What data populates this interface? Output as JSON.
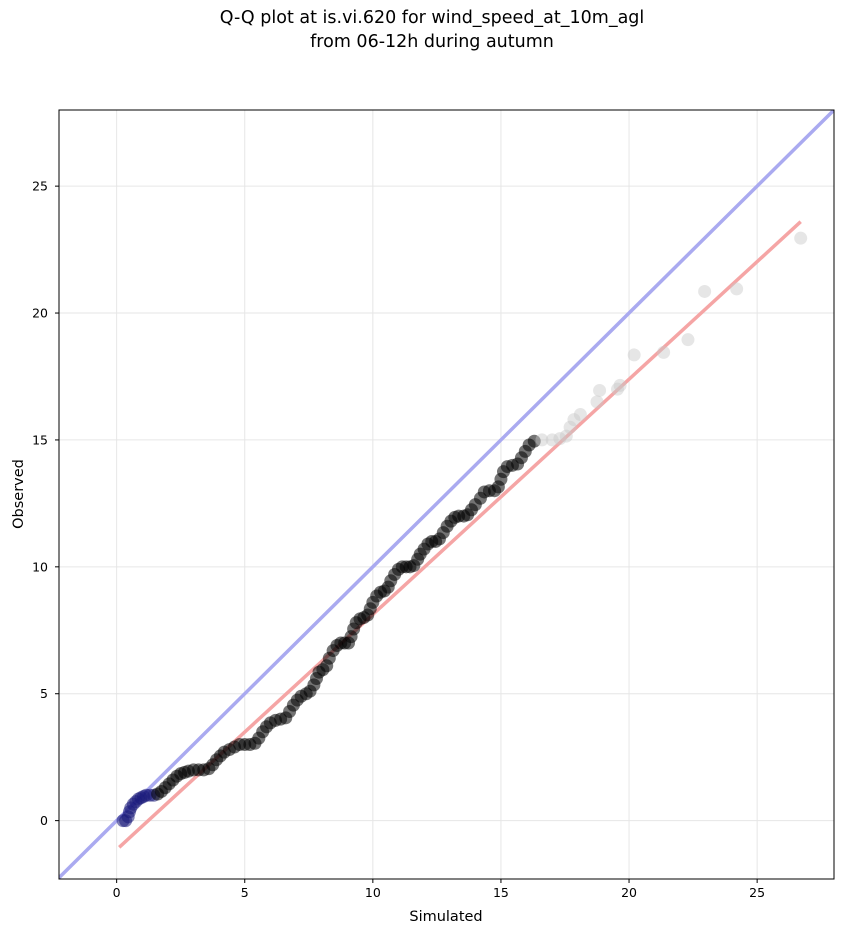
{
  "chart_data": {
    "type": "scatter",
    "title": "Q-Q plot at is.vi.620 for wind_speed_at_10m_agl",
    "subtitle": "from 06-12h during autumn",
    "xlabel": "Simulated",
    "ylabel": "Observed",
    "xlim": [
      -2.25,
      28.0
    ],
    "ylim": [
      -2.3,
      28.0
    ],
    "xticks": [
      0,
      5,
      10,
      15,
      20,
      25
    ],
    "yticks": [
      0,
      5,
      10,
      15,
      20,
      25
    ],
    "grid": true,
    "reference_line": {
      "label": "",
      "color": "#aaaaf0",
      "x": [
        -2.25,
        28.0
      ],
      "y": [
        -2.25,
        28.0
      ]
    },
    "fit_line": {
      "label": "",
      "color": "#f5a5a5",
      "x": [
        0.1,
        26.7
      ],
      "y": [
        -1.05,
        23.6
      ]
    },
    "colors": {
      "points": "#000000",
      "faded_points": "#c8c8c8",
      "low_points": "#1a1a7a"
    },
    "points": [
      [
        0.25,
        0.0
      ],
      [
        0.35,
        0.0
      ],
      [
        0.45,
        0.15
      ],
      [
        0.5,
        0.35
      ],
      [
        0.55,
        0.5
      ],
      [
        0.65,
        0.65
      ],
      [
        0.75,
        0.75
      ],
      [
        0.85,
        0.85
      ],
      [
        0.95,
        0.9
      ],
      [
        1.05,
        0.95
      ],
      [
        1.15,
        1.0
      ],
      [
        1.3,
        1.0
      ],
      [
        1.45,
        1.0
      ],
      [
        1.6,
        1.05
      ],
      [
        1.75,
        1.15
      ],
      [
        1.9,
        1.3
      ],
      [
        2.05,
        1.45
      ],
      [
        2.2,
        1.6
      ],
      [
        2.35,
        1.75
      ],
      [
        2.5,
        1.85
      ],
      [
        2.65,
        1.9
      ],
      [
        2.8,
        1.95
      ],
      [
        3.0,
        2.0
      ],
      [
        3.2,
        2.0
      ],
      [
        3.4,
        2.0
      ],
      [
        3.6,
        2.05
      ],
      [
        3.75,
        2.2
      ],
      [
        3.9,
        2.4
      ],
      [
        4.05,
        2.55
      ],
      [
        4.2,
        2.7
      ],
      [
        4.4,
        2.8
      ],
      [
        4.6,
        2.9
      ],
      [
        4.8,
        3.0
      ],
      [
        5.0,
        3.0
      ],
      [
        5.2,
        3.0
      ],
      [
        5.4,
        3.05
      ],
      [
        5.55,
        3.25
      ],
      [
        5.7,
        3.5
      ],
      [
        5.85,
        3.7
      ],
      [
        6.0,
        3.85
      ],
      [
        6.2,
        3.95
      ],
      [
        6.4,
        4.0
      ],
      [
        6.6,
        4.05
      ],
      [
        6.75,
        4.3
      ],
      [
        6.9,
        4.55
      ],
      [
        7.05,
        4.75
      ],
      [
        7.2,
        4.9
      ],
      [
        7.4,
        5.0
      ],
      [
        7.55,
        5.1
      ],
      [
        7.7,
        5.35
      ],
      [
        7.8,
        5.6
      ],
      [
        7.9,
        5.85
      ],
      [
        8.05,
        5.95
      ],
      [
        8.2,
        6.1
      ],
      [
        8.3,
        6.4
      ],
      [
        8.45,
        6.7
      ],
      [
        8.6,
        6.9
      ],
      [
        8.75,
        7.0
      ],
      [
        8.9,
        7.0
      ],
      [
        9.05,
        7.0
      ],
      [
        9.15,
        7.25
      ],
      [
        9.25,
        7.55
      ],
      [
        9.35,
        7.8
      ],
      [
        9.5,
        7.95
      ],
      [
        9.65,
        8.0
      ],
      [
        9.8,
        8.1
      ],
      [
        9.9,
        8.35
      ],
      [
        10.0,
        8.6
      ],
      [
        10.15,
        8.85
      ],
      [
        10.3,
        9.0
      ],
      [
        10.45,
        9.05
      ],
      [
        10.6,
        9.2
      ],
      [
        10.7,
        9.45
      ],
      [
        10.85,
        9.7
      ],
      [
        11.0,
        9.9
      ],
      [
        11.15,
        10.0
      ],
      [
        11.3,
        10.0
      ],
      [
        11.45,
        10.0
      ],
      [
        11.6,
        10.05
      ],
      [
        11.75,
        10.3
      ],
      [
        11.85,
        10.5
      ],
      [
        12.0,
        10.7
      ],
      [
        12.15,
        10.9
      ],
      [
        12.3,
        11.0
      ],
      [
        12.45,
        11.0
      ],
      [
        12.6,
        11.1
      ],
      [
        12.75,
        11.35
      ],
      [
        12.9,
        11.6
      ],
      [
        13.05,
        11.8
      ],
      [
        13.2,
        11.95
      ],
      [
        13.35,
        12.0
      ],
      [
        13.55,
        12.0
      ],
      [
        13.7,
        12.05
      ],
      [
        13.85,
        12.25
      ],
      [
        14.0,
        12.45
      ],
      [
        14.2,
        12.7
      ],
      [
        14.35,
        12.95
      ],
      [
        14.55,
        13.0
      ],
      [
        14.75,
        13.0
      ],
      [
        14.9,
        13.15
      ],
      [
        15.0,
        13.45
      ],
      [
        15.1,
        13.75
      ],
      [
        15.25,
        13.95
      ],
      [
        15.45,
        14.0
      ],
      [
        15.65,
        14.05
      ],
      [
        15.8,
        14.3
      ],
      [
        15.95,
        14.55
      ],
      [
        16.1,
        14.8
      ],
      [
        16.3,
        14.95
      ],
      [
        16.6,
        15.0
      ],
      [
        17.0,
        15.0
      ],
      [
        17.3,
        15.05
      ],
      [
        17.55,
        15.15
      ],
      [
        17.7,
        15.5
      ],
      [
        17.85,
        15.8
      ],
      [
        18.1,
        16.0
      ],
      [
        18.75,
        16.5
      ],
      [
        18.85,
        16.95
      ],
      [
        19.55,
        17.0
      ],
      [
        19.65,
        17.15
      ],
      [
        20.2,
        18.35
      ],
      [
        21.35,
        18.45
      ],
      [
        22.3,
        18.95
      ],
      [
        22.95,
        20.85
      ],
      [
        24.2,
        20.95
      ],
      [
        26.7,
        22.95
      ]
    ]
  }
}
